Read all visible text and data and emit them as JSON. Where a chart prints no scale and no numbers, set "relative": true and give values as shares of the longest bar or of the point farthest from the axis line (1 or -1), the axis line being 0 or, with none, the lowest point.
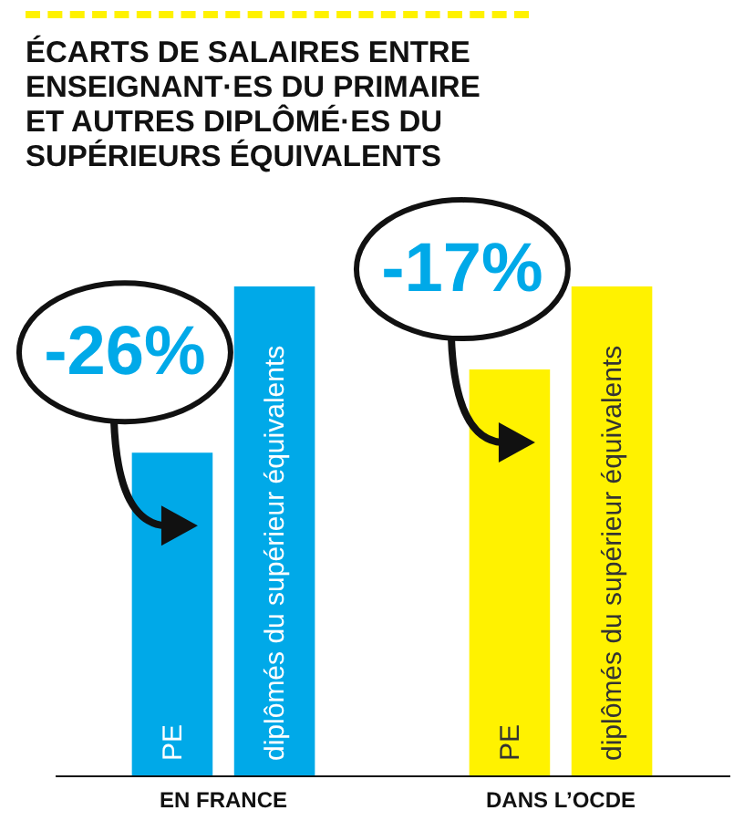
{
  "chart_data": {
    "type": "bar",
    "title": "ÉCARTS DE SALAIRES ENTRE ENSEIGNANT·ES DU PRIMAIRE ET AUTRES DIPLÔMÉ·ES DU SUPÉRIEURS ÉQUIVALENTS",
    "relative": true,
    "categories": [
      "EN FRANCE",
      "DANS L’OCDE"
    ],
    "series": [
      {
        "name": "PE",
        "colors": [
          "#00a9e8",
          "#fff200"
        ],
        "values": [
          0.66,
          0.83
        ]
      },
      {
        "name": "diplômés du supérieur équivalents",
        "colors": [
          "#00a9e8",
          "#fff200"
        ],
        "values": [
          1,
          1
        ]
      }
    ],
    "annotations": [
      "-26%",
      "-17%"
    ]
  }
}
